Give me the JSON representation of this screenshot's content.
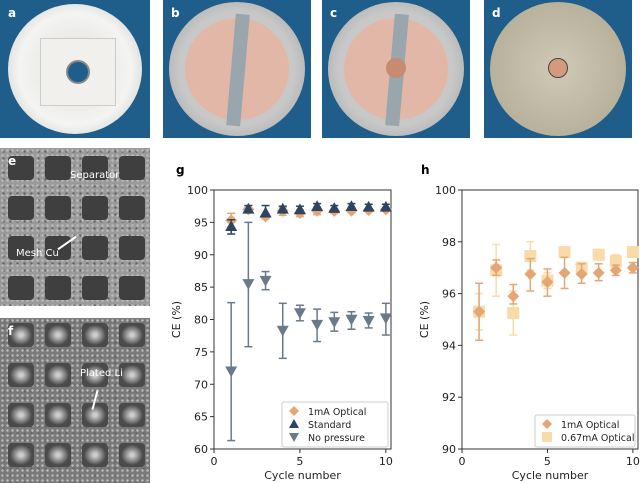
{
  "panels": {
    "a": "a",
    "b": "b",
    "c": "c",
    "d": "d",
    "e": "e",
    "f": "f",
    "g": "g",
    "h": "h"
  },
  "micrograph_labels": {
    "separator": "Separator",
    "mesh_cu": "Mesh Cu",
    "plated_li": "Plated Li"
  },
  "colors": {
    "1mA Optical": "#e5a676",
    "Standard": "#2e4460",
    "No pressure": "#6a7a8b",
    "0.67mA Optical": "#f8dba9"
  },
  "chart_data": [
    {
      "panel": "g",
      "type": "scatter",
      "xlabel": "Cycle number",
      "ylabel": "CE (%)",
      "xlim": [
        0,
        10.3
      ],
      "ylim": [
        60,
        100
      ],
      "xticks": [
        0,
        5,
        10
      ],
      "yticks": [
        60,
        65,
        70,
        75,
        80,
        85,
        90,
        95,
        100
      ],
      "legend": "bottom-right",
      "grid": false,
      "x": [
        1,
        2,
        3,
        4,
        5,
        6,
        7,
        8,
        9,
        10
      ],
      "series": [
        {
          "name": "1mA Optical",
          "marker": "diamond",
          "values": [
            95.3,
            97.0,
            95.9,
            96.75,
            96.45,
            96.8,
            96.75,
            96.8,
            96.9,
            97.0
          ],
          "err_low": [
            94.2,
            96.7,
            95.6,
            96.1,
            95.9,
            96.2,
            96.4,
            96.5,
            96.7,
            96.8
          ],
          "err_high": [
            96.4,
            97.3,
            96.35,
            97.35,
            96.95,
            97.4,
            97.15,
            97.15,
            97.1,
            97.2
          ]
        },
        {
          "name": "Standard",
          "marker": "triangle-up",
          "values": [
            94.4,
            97.1,
            96.5,
            97.1,
            97.0,
            97.5,
            97.2,
            97.5,
            97.4,
            97.4
          ],
          "err_low": [
            93.2,
            96.6,
            95.9,
            96.7,
            96.5,
            97.0,
            96.8,
            97.0,
            96.9,
            96.9
          ],
          "err_high": [
            95.4,
            97.6,
            97.6,
            97.5,
            97.5,
            97.9,
            97.6,
            97.9,
            97.8,
            97.8
          ]
        },
        {
          "name": "No pressure",
          "marker": "triangle-down",
          "values": [
            72.0,
            85.5,
            86.0,
            78.3,
            81.0,
            79.2,
            79.6,
            80.0,
            79.8,
            80.2
          ],
          "err_low": [
            61.3,
            75.8,
            84.6,
            74.0,
            79.8,
            76.6,
            78.2,
            78.5,
            78.7,
            77.6
          ],
          "err_high": [
            82.6,
            95.0,
            87.4,
            82.5,
            82.2,
            81.6,
            81.1,
            81.2,
            81.0,
            82.5
          ]
        }
      ]
    },
    {
      "panel": "h",
      "type": "scatter",
      "xlabel": "Cycle number",
      "ylabel": "CE (%)",
      "xlim": [
        0,
        10.3
      ],
      "ylim": [
        90,
        100
      ],
      "xticks": [
        0,
        5,
        10
      ],
      "yticks": [
        90,
        92,
        94,
        96,
        98,
        100
      ],
      "legend": "bottom-right",
      "grid": false,
      "x": [
        1,
        2,
        3,
        4,
        5,
        6,
        7,
        8,
        9,
        10
      ],
      "series": [
        {
          "name": "0.67mA Optical",
          "marker": "square",
          "values": [
            95.3,
            96.9,
            95.25,
            97.45,
            96.5,
            97.6,
            97.0,
            97.5,
            97.25,
            97.6
          ],
          "err_low": [
            94.6,
            95.9,
            94.4,
            96.9,
            96.2,
            97.4,
            96.8,
            97.3,
            97.0,
            97.4
          ],
          "err_high": [
            96.0,
            97.9,
            96.1,
            98.0,
            96.8,
            97.8,
            97.2,
            97.7,
            97.5,
            97.8
          ]
        },
        {
          "name": "1mA Optical",
          "marker": "diamond",
          "values": [
            95.3,
            97.0,
            95.9,
            96.75,
            96.45,
            96.8,
            96.75,
            96.8,
            96.9,
            97.0
          ],
          "err_low": [
            94.2,
            96.7,
            95.6,
            96.1,
            95.9,
            96.2,
            96.4,
            96.5,
            96.7,
            96.8
          ],
          "err_high": [
            96.4,
            97.3,
            96.35,
            97.35,
            96.95,
            97.4,
            97.15,
            97.15,
            97.1,
            97.2
          ]
        }
      ]
    }
  ]
}
